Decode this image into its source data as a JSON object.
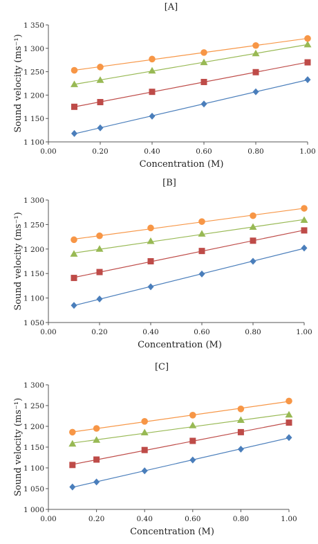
{
  "chart_data": [
    {
      "type": "scatter",
      "title": "[A]",
      "xlabel": "Concentration (M)",
      "ylabel": "Sound velocity (ms⁻¹)",
      "xlim": [
        0,
        1
      ],
      "ylim": [
        1100,
        1350
      ],
      "xticks": [
        "0.00",
        "0.20",
        "0.40",
        "0.60",
        "0.80",
        "1.00"
      ],
      "yticks": [
        "1 100",
        "1 150",
        "1 200",
        "1 250",
        "1 300",
        "1 350"
      ],
      "x": [
        0.1,
        0.2,
        0.4,
        0.6,
        0.8,
        1.0
      ],
      "grid": false,
      "legend": "none",
      "series": [
        {
          "color": "#4a7ebb",
          "marker": "diamond",
          "values": [
            1118,
            1130,
            1155,
            1181,
            1207,
            1233
          ]
        },
        {
          "color": "#be4b48",
          "marker": "square",
          "values": [
            1175,
            1185,
            1207,
            1228,
            1249,
            1270
          ]
        },
        {
          "color": "#98b954",
          "marker": "triangle",
          "values": [
            1223,
            1232,
            1252,
            1270,
            1289,
            1308
          ]
        },
        {
          "color": "#f79646",
          "marker": "circle",
          "values": [
            1253,
            1260,
            1277,
            1291,
            1306,
            1321
          ]
        }
      ]
    },
    {
      "type": "scatter",
      "title": "[B]",
      "xlabel": "Concentration (M)",
      "ylabel": "Sound velocity (ms⁻¹)",
      "xlim": [
        0,
        1
      ],
      "ylim": [
        1050,
        1300
      ],
      "xticks": [
        "0.00",
        "0.20",
        "0.40",
        "0.60",
        "0.80",
        "1.00"
      ],
      "yticks": [
        "1 050",
        "1 100",
        "1 150",
        "1 200",
        "1 250",
        "1 300"
      ],
      "x": [
        0.1,
        0.2,
        0.4,
        0.6,
        0.8,
        1.0
      ],
      "grid": false,
      "legend": "none",
      "series": [
        {
          "color": "#4a7ebb",
          "marker": "diamond",
          "values": [
            1085,
            1098,
            1123,
            1149,
            1175,
            1202
          ]
        },
        {
          "color": "#be4b48",
          "marker": "square",
          "values": [
            1141,
            1153,
            1175,
            1196,
            1217,
            1238
          ]
        },
        {
          "color": "#98b954",
          "marker": "triangle",
          "values": [
            1190,
            1200,
            1216,
            1231,
            1245,
            1259
          ]
        },
        {
          "color": "#f79646",
          "marker": "circle",
          "values": [
            1219,
            1227,
            1243,
            1256,
            1268,
            1283
          ]
        }
      ]
    },
    {
      "type": "scatter",
      "title": "[C]",
      "xlabel": "Concentration (M)",
      "ylabel": "Sound velocity (ms⁻¹)",
      "xlim": [
        0,
        1
      ],
      "ylim": [
        1000,
        1300
      ],
      "xticks": [
        "0.00",
        "0.20",
        "0.40",
        "0.60",
        "0.80",
        "1.00"
      ],
      "yticks": [
        "1 000",
        "1 050",
        "1 100",
        "1 150",
        "1 200",
        "1 250",
        "1 300"
      ],
      "x": [
        0.1,
        0.2,
        0.4,
        0.6,
        0.8,
        1.0
      ],
      "grid": false,
      "legend": "none",
      "series": [
        {
          "color": "#4a7ebb",
          "marker": "diamond",
          "values": [
            1054,
            1066,
            1093,
            1119,
            1145,
            1173
          ]
        },
        {
          "color": "#be4b48",
          "marker": "square",
          "values": [
            1107,
            1120,
            1143,
            1165,
            1186,
            1209
          ]
        },
        {
          "color": "#98b954",
          "marker": "triangle",
          "values": [
            1158,
            1167,
            1185,
            1202,
            1215,
            1228
          ]
        },
        {
          "color": "#f79646",
          "marker": "circle",
          "values": [
            1186,
            1195,
            1212,
            1227,
            1242,
            1261
          ]
        }
      ]
    }
  ]
}
